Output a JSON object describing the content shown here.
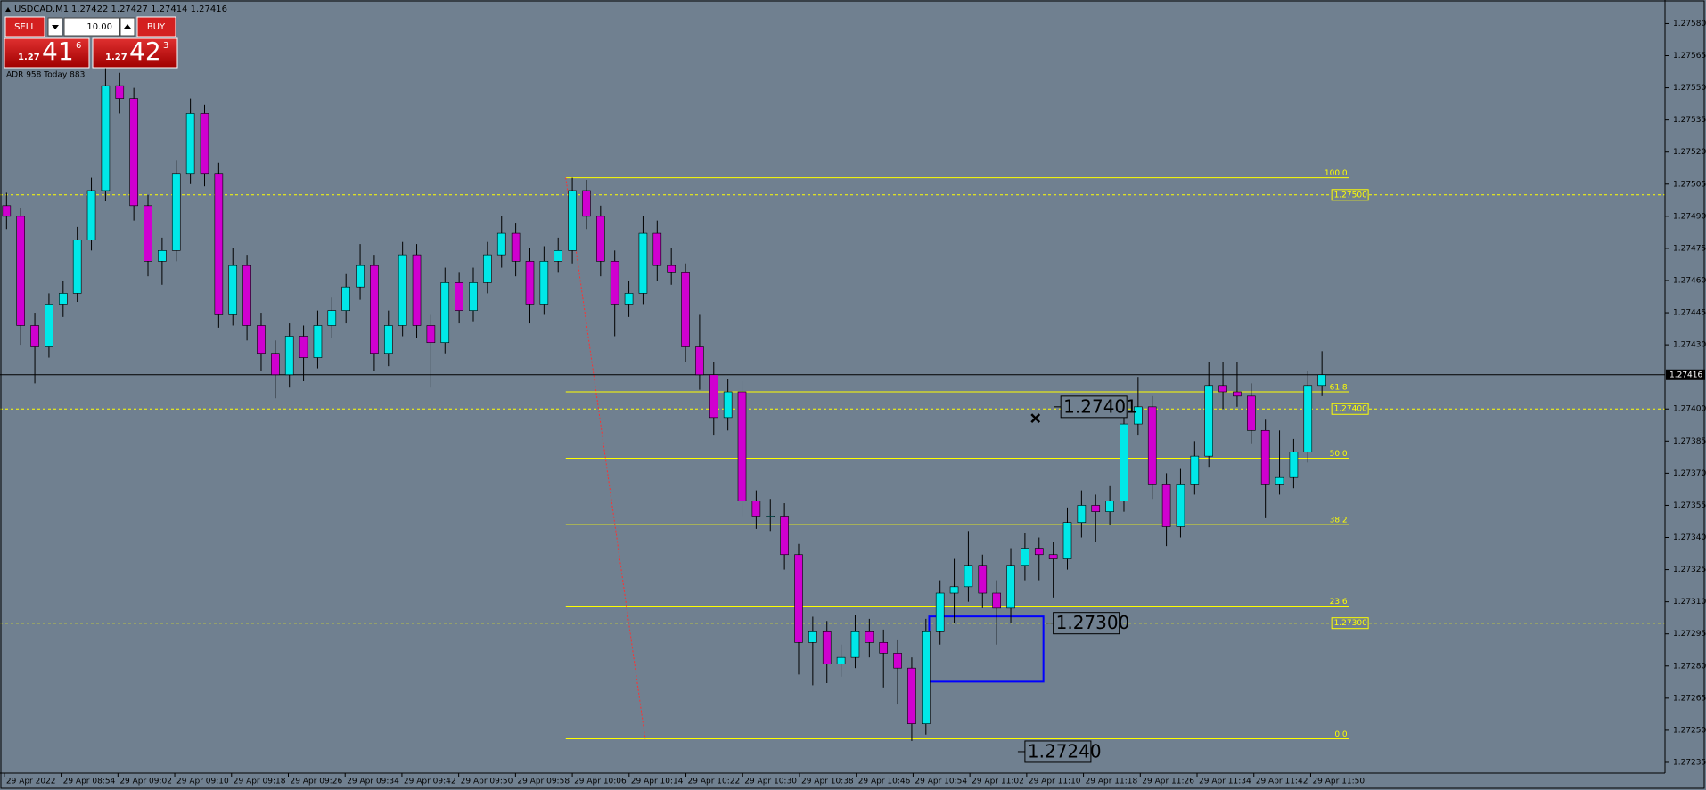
{
  "header": {
    "symbol": "USDCAD,M1",
    "quote": "1.27422 1.27427 1.27414 1.27416"
  },
  "trade_panel": {
    "sell": "SELL",
    "buy": "BUY",
    "lots": "10.00",
    "sell_price": {
      "big": "1.27",
      "pips": "41",
      "point": "6"
    },
    "buy_price": {
      "big": "1.27",
      "pips": "42",
      "point": "3"
    }
  },
  "adr": "ADR 958  Today 883",
  "chart": {
    "ylim": [
      1.27591,
      1.2723
    ],
    "yticks": [
      {
        "value": 1.2758,
        "label": "1.27580"
      },
      1.27565,
      {
        "value": 1.2755,
        "label": "1.27550"
      },
      1.27535,
      {
        "value": 1.2752,
        "label": "1.27520"
      },
      1.27505,
      {
        "value": 1.2749,
        "label": "1.27490"
      },
      1.27475,
      {
        "value": 1.2746,
        "label": "1.27460"
      },
      1.27445,
      {
        "value": 1.2743,
        "label": "1.27430"
      },
      {
        "value": 1.274,
        "label": "1.27400"
      },
      1.27385,
      {
        "value": 1.2737,
        "label": "1.27370"
      },
      1.27355,
      {
        "value": 1.2734,
        "label": "1.27340"
      },
      1.27325,
      {
        "value": 1.2731,
        "label": "1.27310"
      },
      1.27295,
      {
        "value": 1.2728,
        "label": "1.27280"
      },
      1.27265,
      {
        "value": 1.2725,
        "label": "1.27250"
      },
      1.27235
    ],
    "current_price": 1.27416,
    "time_labels": [
      "29 Apr 2022",
      "29 Apr 08:54",
      "29 Apr 09:02",
      "29 Apr 09:10",
      "29 Apr 09:18",
      "29 Apr 09:26",
      "29 Apr 09:34",
      "29 Apr 09:42",
      "29 Apr 09:50",
      "29 Apr 09:58",
      "29 Apr 10:06",
      "29 Apr 10:14",
      "29 Apr 10:22",
      "29 Apr 10:30",
      "29 Apr 10:38",
      "29 Apr 10:46",
      "29 Apr 10:54",
      "29 Apr 11:02",
      "29 Apr 11:10",
      "29 Apr 11:18",
      "29 Apr 11:26",
      "29 Apr 11:34",
      "29 Apr 11:42",
      "29 Apr 11:50"
    ],
    "fib_levels": [
      {
        "level": {
          "value": 100,
          "label": "100.0"
        },
        "price": 1.27508
      },
      {
        "level": 61.8,
        "price": 1.27408
      },
      {
        "level": {
          "value": 50,
          "label": "50.0"
        },
        "price": 1.27377
      },
      {
        "level": 38.2,
        "price": 1.27346
      },
      {
        "level": 23.6,
        "price": 1.27308
      },
      {
        "level": {
          "value": 0,
          "label": "0.0"
        },
        "price": 1.27246
      }
    ],
    "price_lines": [
      {
        "value": 1.275,
        "label": "1.27500"
      },
      {
        "value": 1.274,
        "label": "1.27400"
      },
      {
        "value": 1.273,
        "label": "1.27300"
      }
    ],
    "price_labels": [
      1.27401,
      {
        "value": 1.273,
        "label": "1.27300"
      },
      {
        "value": 1.2724,
        "label": "1.27240"
      }
    ],
    "candles": [
      [
        1.27495,
        1.27501,
        1.27484,
        1.2749
      ],
      [
        1.2749,
        1.27494,
        1.2743,
        1.27439
      ],
      [
        1.27439,
        1.27445,
        1.27412,
        1.27429
      ],
      [
        1.27429,
        1.27454,
        1.27424,
        1.27449
      ],
      [
        1.27449,
        1.2746,
        1.27443,
        1.27454
      ],
      [
        1.27454,
        1.27485,
        1.2745,
        1.27479
      ],
      [
        1.27479,
        1.27508,
        1.27474,
        1.27502
      ],
      [
        1.27502,
        1.2756,
        1.27497,
        1.27551
      ],
      [
        1.27551,
        1.27557,
        1.27538,
        1.27545
      ],
      [
        1.27545,
        1.2755,
        1.27488,
        1.27495
      ],
      [
        1.27495,
        1.275,
        1.27462,
        1.27469
      ],
      [
        1.27469,
        1.2748,
        1.27458,
        1.27474
      ],
      [
        1.27474,
        1.27516,
        1.27469,
        1.2751
      ],
      [
        1.2751,
        1.27545,
        1.27505,
        1.27538
      ],
      [
        1.27538,
        1.27542,
        1.27504,
        1.2751
      ],
      [
        1.2751,
        1.27515,
        1.27438,
        1.27444
      ],
      [
        1.27444,
        1.27475,
        1.27439,
        1.27467
      ],
      [
        1.27467,
        1.27472,
        1.27432,
        1.27439
      ],
      [
        1.27439,
        1.27445,
        1.27418,
        1.27426
      ],
      [
        1.27426,
        1.27432,
        1.27405,
        1.27416
      ],
      [
        1.27416,
        1.2744,
        1.2741,
        1.27434
      ],
      [
        1.27434,
        1.27439,
        1.27413,
        1.27424
      ],
      [
        1.27424,
        1.27446,
        1.27419,
        1.27439
      ],
      [
        1.27439,
        1.27452,
        1.27433,
        1.27446
      ],
      [
        1.27446,
        1.27463,
        1.2744,
        1.27457
      ],
      [
        1.27457,
        1.27477,
        1.27451,
        1.27467
      ],
      [
        1.27467,
        1.27472,
        1.27418,
        1.27426
      ],
      [
        1.27426,
        1.27446,
        1.2742,
        1.27439
      ],
      [
        1.27439,
        1.27478,
        1.27434,
        1.27472
      ],
      [
        1.27472,
        1.27477,
        1.27433,
        1.27439
      ],
      [
        1.27439,
        1.27444,
        1.2741,
        1.27431
      ],
      [
        1.27431,
        1.27466,
        1.27426,
        1.27459
      ],
      [
        1.27459,
        1.27464,
        1.2744,
        1.27446
      ],
      [
        1.27446,
        1.27466,
        1.27441,
        1.27459
      ],
      [
        1.27459,
        1.27478,
        1.27454,
        1.27472
      ],
      [
        1.27472,
        1.2749,
        1.27466,
        1.27482
      ],
      [
        1.27482,
        1.27487,
        1.27462,
        1.27469
      ],
      [
        1.27469,
        1.27475,
        1.2744,
        1.27449
      ],
      [
        1.27449,
        1.27476,
        1.27444,
        1.27469
      ],
      [
        1.27469,
        1.2748,
        1.27464,
        1.27474
      ],
      [
        1.27474,
        1.27508,
        1.27468,
        1.27502
      ],
      [
        1.27502,
        1.27507,
        1.27484,
        1.2749
      ],
      [
        1.2749,
        1.27495,
        1.27462,
        1.27469
      ],
      [
        1.27469,
        1.27474,
        1.27434,
        1.27449
      ],
      [
        1.27449,
        1.2746,
        1.27443,
        1.27454
      ],
      [
        1.27454,
        1.2749,
        1.27449,
        1.27482
      ],
      [
        1.27482,
        1.27488,
        1.2746,
        1.27467
      ],
      [
        1.27467,
        1.27475,
        1.27458,
        1.27464
      ],
      [
        1.27464,
        1.27468,
        1.27422,
        1.27429
      ],
      [
        1.27429,
        1.27444,
        1.27409,
        1.27416
      ],
      [
        1.27416,
        1.27422,
        1.27388,
        1.27396
      ],
      [
        1.27396,
        1.27414,
        1.2739,
        1.27408
      ],
      [
        1.27408,
        1.27413,
        1.2735,
        1.27357
      ],
      [
        1.27357,
        1.27362,
        1.27344,
        1.2735
      ],
      [
        1.2735,
        1.27358,
        1.27343,
        1.2735
      ],
      [
        1.2735,
        1.27356,
        1.27325,
        1.27332
      ],
      [
        1.27332,
        1.27337,
        1.27276,
        1.27291
      ],
      [
        1.27291,
        1.27303,
        1.27271,
        1.27296
      ],
      [
        1.27296,
        1.27301,
        1.27272,
        1.27281
      ],
      [
        1.27281,
        1.2729,
        1.27275,
        1.27284
      ],
      [
        1.27284,
        1.27304,
        1.27279,
        1.27296
      ],
      [
        1.27296,
        1.27302,
        1.27284,
        1.27291
      ],
      [
        1.27291,
        1.27297,
        1.2727,
        1.27286
      ],
      [
        1.27286,
        1.27292,
        1.27262,
        1.27279
      ],
      [
        1.27279,
        1.27284,
        1.27245,
        1.27253
      ],
      [
        1.27253,
        1.27302,
        1.27248,
        1.27296
      ],
      [
        1.27296,
        1.2732,
        1.2729,
        1.27314
      ],
      [
        1.27314,
        1.2733,
        1.273,
        1.27317
      ],
      [
        1.27317,
        1.27343,
        1.2731,
        1.27327
      ],
      [
        1.27327,
        1.27332,
        1.27307,
        1.27314
      ],
      [
        1.27314,
        1.2732,
        1.2729,
        1.27307
      ],
      [
        1.27307,
        1.27335,
        1.273,
        1.27327
      ],
      [
        1.27327,
        1.27342,
        1.2732,
        1.27335
      ],
      [
        1.27335,
        1.2734,
        1.2732,
        1.27332
      ],
      [
        1.27332,
        1.27338,
        1.27312,
        1.2733
      ],
      [
        1.2733,
        1.27354,
        1.27325,
        1.27347
      ],
      [
        1.27347,
        1.27362,
        1.2734,
        1.27355
      ],
      [
        1.27355,
        1.2736,
        1.27338,
        1.27352
      ],
      [
        1.27352,
        1.27364,
        1.27346,
        1.27357
      ],
      [
        1.27357,
        1.274,
        1.27352,
        1.27393
      ],
      [
        1.27393,
        1.27415,
        1.27388,
        1.27401
      ],
      [
        1.27401,
        1.27406,
        1.27358,
        1.27365
      ],
      [
        1.27365,
        1.2737,
        1.27336,
        1.27345
      ],
      [
        1.27345,
        1.27372,
        1.2734,
        1.27365
      ],
      [
        1.27365,
        1.27385,
        1.2736,
        1.27378
      ],
      [
        1.27378,
        1.27422,
        1.27373,
        1.27411
      ],
      [
        1.27411,
        1.27422,
        1.274,
        1.27408
      ],
      [
        1.27408,
        1.27422,
        1.27401,
        1.27406
      ],
      [
        1.27406,
        1.27412,
        1.27384,
        1.2739
      ],
      [
        1.2739,
        1.27395,
        1.27349,
        1.27365
      ],
      [
        1.27365,
        1.2739,
        1.2736,
        1.27368
      ],
      [
        1.27368,
        1.27386,
        1.27363,
        1.2738
      ],
      [
        1.2738,
        1.27418,
        1.27375,
        1.27411
      ],
      [
        1.27411,
        1.27427,
        1.27406,
        1.27416
      ]
    ]
  }
}
